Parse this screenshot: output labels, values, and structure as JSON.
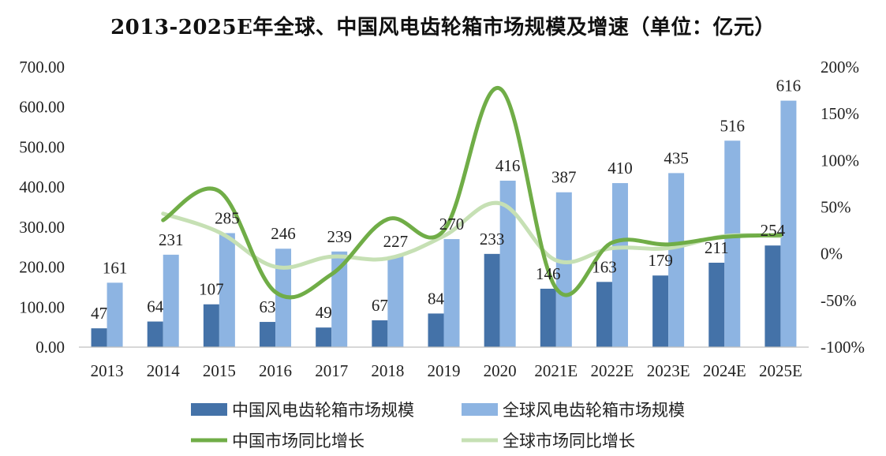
{
  "chart_data": {
    "type": "bar",
    "title": "2013-2025E年全球、中国风电齿轮箱市场规模及增速（单位：亿元）",
    "categories": [
      "2013",
      "2014",
      "2015",
      "2016",
      "2017",
      "2018",
      "2019",
      "2020",
      "2021E",
      "2022E",
      "2023E",
      "2024E",
      "2025E"
    ],
    "y_left": {
      "ylim": [
        0,
        700
      ],
      "ticks": [
        "0.00",
        "100.00",
        "200.00",
        "300.00",
        "400.00",
        "500.00",
        "600.00",
        "700.00"
      ]
    },
    "y_right": {
      "ylim": [
        -100,
        200
      ],
      "ticks": [
        "-100%",
        "-50%",
        "0%",
        "50%",
        "100%",
        "150%",
        "200%"
      ]
    },
    "series": [
      {
        "name": "中国风电齿轮箱市场规模",
        "kind": "bar",
        "color": "#4472A8",
        "values": [
          47,
          64,
          107,
          63,
          49,
          67,
          84,
          233,
          146,
          163,
          179,
          211,
          254
        ]
      },
      {
        "name": "全球风电齿轮箱市场规模",
        "kind": "bar",
        "color": "#8DB4E2",
        "values": [
          161,
          231,
          285,
          246,
          239,
          227,
          270,
          416,
          387,
          410,
          435,
          516,
          616
        ]
      },
      {
        "name": "中国市场同比增长",
        "kind": "line",
        "color": "#70AD47",
        "axis": "right",
        "values": [
          null,
          36,
          67,
          -41,
          -22,
          37,
          25,
          177,
          -37,
          12,
          10,
          18,
          20
        ]
      },
      {
        "name": "全球市场同比增长",
        "kind": "line",
        "color": "#C6E0B4",
        "axis": "right",
        "values": [
          null,
          43,
          23,
          -14,
          -3,
          -5,
          19,
          54,
          -7,
          6,
          6,
          19,
          19
        ]
      }
    ],
    "legend_position": "bottom",
    "grid": false
  }
}
